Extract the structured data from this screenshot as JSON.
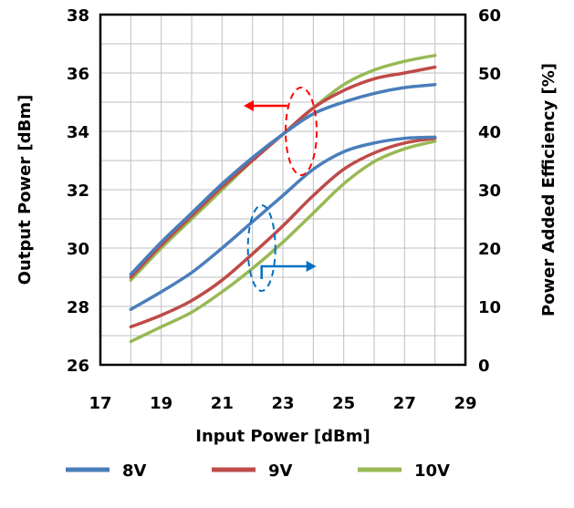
{
  "chart_data": {
    "type": "line",
    "xlabel": "Input Power [dBm]",
    "ylabel_left": "Output Power [dBm]",
    "ylabel_right": "Power Added Efficiency [%]",
    "xlim": [
      17,
      29
    ],
    "xticks": [
      "17",
      "19",
      "21",
      "23",
      "25",
      "27",
      "29"
    ],
    "ylim_left": [
      26,
      38
    ],
    "yticks_left": [
      "26",
      "28",
      "30",
      "32",
      "34",
      "36",
      "38"
    ],
    "ylim_right": [
      0,
      60
    ],
    "yticks_right": [
      "0",
      "10",
      "20",
      "30",
      "40",
      "50",
      "60"
    ],
    "grid": true,
    "legend_position": "bottom",
    "x": [
      18,
      19,
      20,
      21,
      22,
      23,
      24,
      25,
      26,
      27,
      28
    ],
    "series": [
      {
        "name": "8V",
        "color": "#4a7ebb",
        "output_power": [
          29.1,
          30.2,
          31.2,
          32.2,
          33.1,
          33.9,
          34.6,
          35.0,
          35.3,
          35.5,
          35.6
        ],
        "pae": [
          9.5,
          12.5,
          15.8,
          20.0,
          24.5,
          29.0,
          33.5,
          36.5,
          38.0,
          38.8,
          39.0
        ]
      },
      {
        "name": "9V",
        "color": "#be4b48",
        "output_power": [
          29.0,
          30.1,
          31.1,
          32.1,
          33.0,
          33.9,
          34.8,
          35.4,
          35.8,
          36.0,
          36.2
        ],
        "pae": [
          6.5,
          8.5,
          11.0,
          14.5,
          19.0,
          23.8,
          29.0,
          33.5,
          36.3,
          38.0,
          38.8
        ]
      },
      {
        "name": "10V",
        "color": "#98b954",
        "output_power": [
          28.9,
          30.0,
          31.0,
          32.0,
          33.0,
          33.9,
          34.8,
          35.6,
          36.1,
          36.4,
          36.6
        ],
        "pae": [
          4.0,
          6.5,
          9.0,
          12.5,
          16.5,
          21.0,
          26.0,
          31.0,
          34.8,
          37.0,
          38.3
        ]
      }
    ],
    "annotations": [
      {
        "shape": "ellipse",
        "color": "#ff0000",
        "x": 23.6,
        "y_left": 34.0,
        "arrow_direction": "left"
      },
      {
        "shape": "ellipse",
        "color": "#0070c0",
        "x": 22.3,
        "y_left": 30.0,
        "arrow_direction": "right"
      }
    ]
  }
}
